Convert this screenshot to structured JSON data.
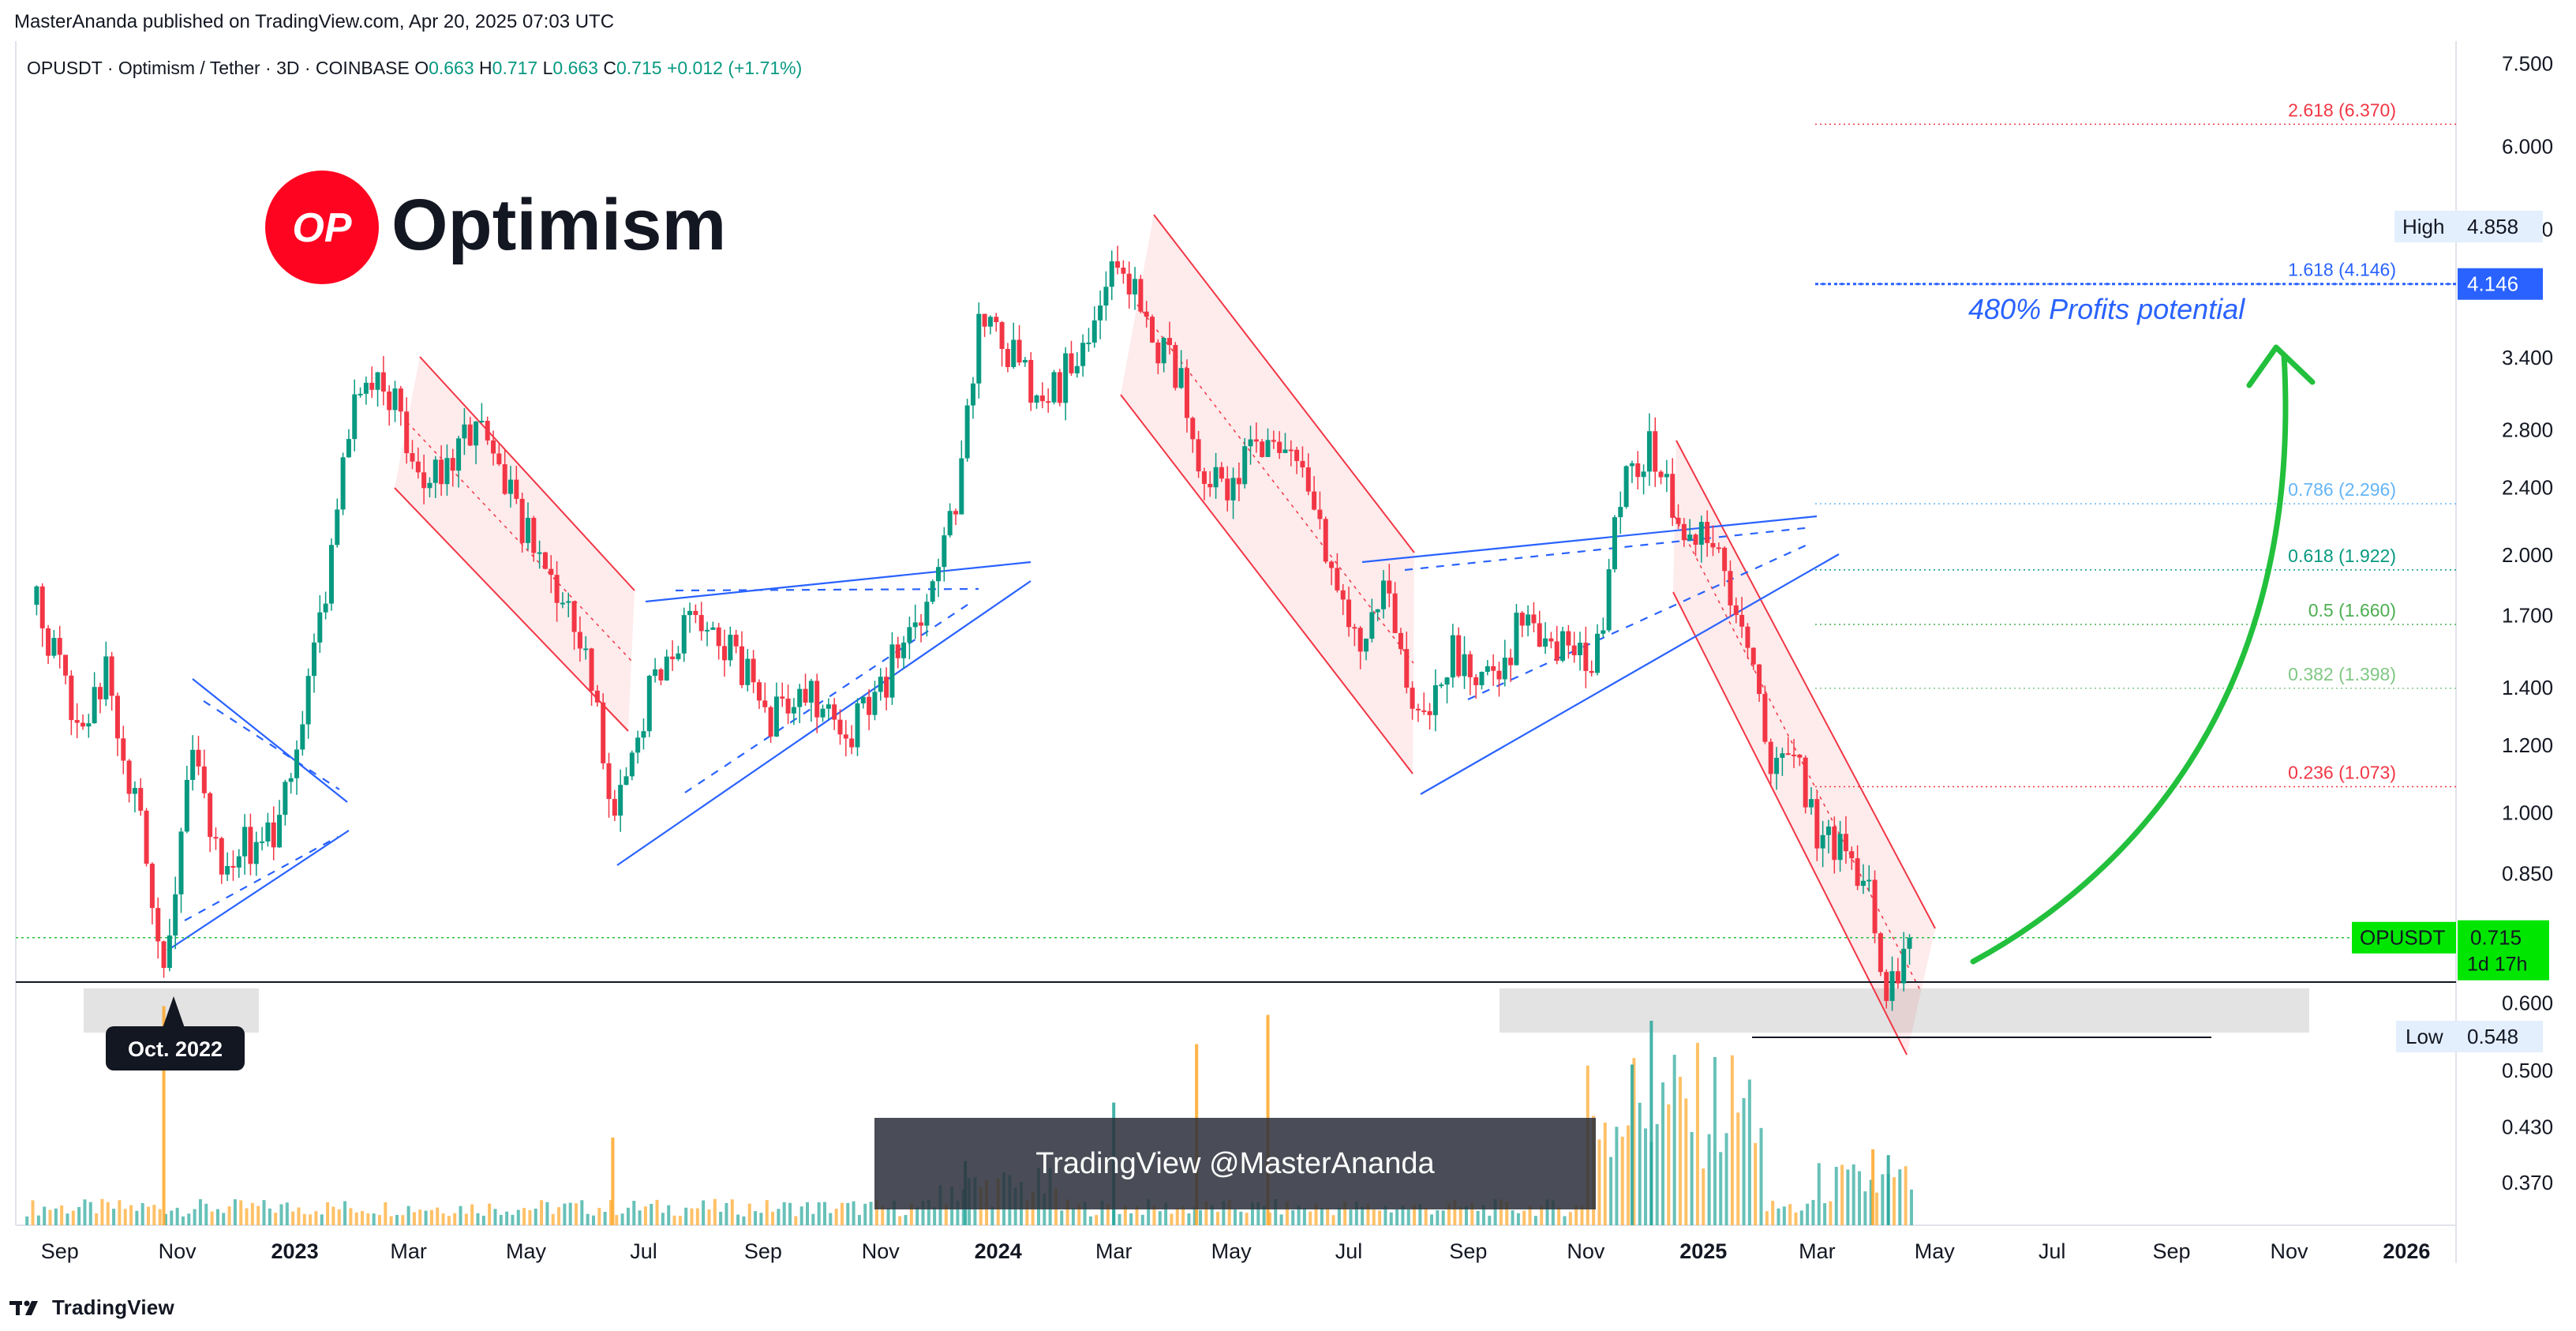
{
  "header": {
    "published_line": "MasterAnanda published on TradingView.com, Apr 20, 2025 07:03 UTC"
  },
  "footer": {
    "brand": "TradingView"
  },
  "logo": {
    "badge": "OP",
    "name": "Optimism",
    "color": "#ff0420"
  },
  "watermark": "TradingView @MasterAnanda",
  "colors": {
    "up": "#089981",
    "down": "#f23645",
    "up_volume": "#26a69a",
    "down_volume": "#ffa726",
    "green_arrow": "#22c03c",
    "channel": "#f23645",
    "trendline": "#2962ff"
  },
  "chart_data": {
    "type": "candlestick",
    "symbol_line": {
      "symbol": "OPUSDT · Optimism / Tether · 3D · COINBASE",
      "open_label": "O",
      "open": "0.663",
      "high_label": "H",
      "high": "0.717",
      "low_label": "L",
      "low": "0.663",
      "close_label": "C",
      "close": "0.715",
      "change": "+0.012 (+1.71%)"
    },
    "y_axis": {
      "scale": "log",
      "range": [
        0.33,
        7.9
      ],
      "ticks": [
        "7.500",
        "6.000",
        "4.800",
        "3.400",
        "2.800",
        "2.400",
        "2.000",
        "1.700",
        "1.400",
        "1.200",
        "1.000",
        "0.850",
        "0.600",
        "0.500",
        "0.430",
        "0.370"
      ]
    },
    "x_axis": {
      "range": [
        "2022-08-10",
        "2026-01-25"
      ],
      "ticks": [
        {
          "label": "Sep",
          "date": "2022-09-01",
          "bold": false
        },
        {
          "label": "Nov",
          "date": "2022-11-01",
          "bold": false
        },
        {
          "label": "2023",
          "date": "2023-01-01",
          "bold": true
        },
        {
          "label": "Mar",
          "date": "2023-03-01",
          "bold": false
        },
        {
          "label": "May",
          "date": "2023-05-01",
          "bold": false
        },
        {
          "label": "Jul",
          "date": "2023-07-01",
          "bold": false
        },
        {
          "label": "Sep",
          "date": "2023-09-01",
          "bold": false
        },
        {
          "label": "Nov",
          "date": "2023-11-01",
          "bold": false
        },
        {
          "label": "2024",
          "date": "2024-01-01",
          "bold": true
        },
        {
          "label": "Mar",
          "date": "2024-03-01",
          "bold": false
        },
        {
          "label": "May",
          "date": "2024-05-01",
          "bold": false
        },
        {
          "label": "Jul",
          "date": "2024-07-01",
          "bold": false
        },
        {
          "label": "Sep",
          "date": "2024-09-01",
          "bold": false
        },
        {
          "label": "Nov",
          "date": "2024-11-01",
          "bold": false
        },
        {
          "label": "2025",
          "date": "2025-01-01",
          "bold": true
        },
        {
          "label": "Mar",
          "date": "2025-03-01",
          "bold": false
        },
        {
          "label": "May",
          "date": "2025-05-01",
          "bold": false
        },
        {
          "label": "Jul",
          "date": "2025-07-01",
          "bold": false
        },
        {
          "label": "Sep",
          "date": "2025-09-01",
          "bold": false
        },
        {
          "label": "Nov",
          "date": "2025-11-01",
          "bold": false
        },
        {
          "label": "2026",
          "date": "2026-01-01",
          "bold": true
        }
      ]
    },
    "price_path": [
      [
        "2022-08-20",
        1.75
      ],
      [
        "2022-09-10",
        1.25
      ],
      [
        "2022-09-25",
        1.45
      ],
      [
        "2022-10-15",
        0.92
      ],
      [
        "2022-10-26",
        0.66
      ],
      [
        "2022-11-08",
        1.28
      ],
      [
        "2022-11-22",
        0.88
      ],
      [
        "2022-12-20",
        0.95
      ],
      [
        "2023-01-08",
        1.4
      ],
      [
        "2023-01-20",
        2.05
      ],
      [
        "2023-02-01",
        3.0
      ],
      [
        "2023-02-20",
        3.15
      ],
      [
        "2023-03-10",
        2.35
      ],
      [
        "2023-04-05",
        2.9
      ],
      [
        "2023-04-20",
        2.4
      ],
      [
        "2023-05-10",
        1.95
      ],
      [
        "2023-06-01",
        1.55
      ],
      [
        "2023-06-15",
        1.0
      ],
      [
        "2023-07-05",
        1.4
      ],
      [
        "2023-07-25",
        1.65
      ],
      [
        "2023-08-15",
        1.55
      ],
      [
        "2023-09-05",
        1.3
      ],
      [
        "2023-09-25",
        1.42
      ],
      [
        "2023-10-12",
        1.22
      ],
      [
        "2023-10-30",
        1.38
      ],
      [
        "2023-11-15",
        1.6
      ],
      [
        "2023-11-28",
        1.78
      ],
      [
        "2023-12-12",
        2.4
      ],
      [
        "2023-12-22",
        3.7
      ],
      [
        "2024-01-08",
        3.4
      ],
      [
        "2024-01-25",
        3.0
      ],
      [
        "2024-02-15",
        3.5
      ],
      [
        "2024-03-05",
        4.5
      ],
      [
        "2024-03-15",
        3.8
      ],
      [
        "2024-04-05",
        3.15
      ],
      [
        "2024-04-15",
        2.5
      ],
      [
        "2024-05-01",
        2.45
      ],
      [
        "2024-05-20",
        2.8
      ],
      [
        "2024-06-05",
        2.5
      ],
      [
        "2024-06-25",
        1.85
      ],
      [
        "2024-07-08",
        1.55
      ],
      [
        "2024-07-22",
        1.85
      ],
      [
        "2024-08-05",
        1.25
      ],
      [
        "2024-08-25",
        1.55
      ],
      [
        "2024-09-10",
        1.4
      ],
      [
        "2024-10-01",
        1.7
      ],
      [
        "2024-10-20",
        1.55
      ],
      [
        "2024-11-05",
        1.45
      ],
      [
        "2024-11-20",
        2.4
      ],
      [
        "2024-12-05",
        2.7
      ],
      [
        "2024-12-20",
        2.1
      ],
      [
        "2025-01-05",
        2.05
      ],
      [
        "2025-01-15",
        1.8
      ],
      [
        "2025-01-28",
        1.5
      ],
      [
        "2025-02-05",
        1.15
      ],
      [
        "2025-02-15",
        1.2
      ],
      [
        "2025-03-01",
        0.95
      ],
      [
        "2025-03-15",
        0.9
      ],
      [
        "2025-03-28",
        0.82
      ],
      [
        "2025-04-07",
        0.6
      ],
      [
        "2025-04-14",
        0.69
      ],
      [
        "2025-04-20",
        0.715
      ]
    ],
    "current_price": {
      "symbol": "OPUSDT",
      "value": "0.715",
      "countdown": "1d 17h"
    },
    "high_marker": {
      "label": "High",
      "value": "4.858"
    },
    "low_marker": {
      "label": "Low",
      "value": "0.548"
    },
    "fib_target_badge": "4.146",
    "fibonacci": [
      {
        "label": "2.618 (6.370)",
        "value": 6.37,
        "color": "#f23645"
      },
      {
        "label": "1.618 (4.146)",
        "value": 4.146,
        "color": "#2962ff"
      },
      {
        "label": "0.786 (2.296)",
        "value": 2.296,
        "color": "#64b5f6"
      },
      {
        "label": "0.618 (1.922)",
        "value": 1.922,
        "color": "#089981"
      },
      {
        "label": "0.5 (1.660)",
        "value": 1.66,
        "color": "#4caf50"
      },
      {
        "label": "0.382 (1.398)",
        "value": 1.398,
        "color": "#81c784"
      },
      {
        "label": "0.236 (1.073)",
        "value": 1.073,
        "color": "#f23645"
      }
    ],
    "annotations": {
      "profits": "480% Profits potential",
      "bottom_label": "Oct. 2022"
    },
    "volume": [
      [
        "2022-10-25",
        0.75,
        "down"
      ],
      [
        "2023-06-15",
        0.3,
        "down"
      ],
      [
        "2023-12-15",
        0.22,
        "up"
      ],
      [
        "2024-04-13",
        0.62,
        "down"
      ],
      [
        "2024-05-20",
        0.72,
        "down"
      ],
      [
        "2024-03-01",
        0.42,
        "up"
      ],
      [
        "2024-12-05",
        0.7,
        "up"
      ],
      [
        "2024-11-25",
        0.55,
        "up"
      ],
      [
        "2025-04-07",
        0.24,
        "up"
      ],
      [
        "2025-03-30",
        0.26,
        "down"
      ]
    ],
    "grid": false,
    "legend": "none"
  }
}
